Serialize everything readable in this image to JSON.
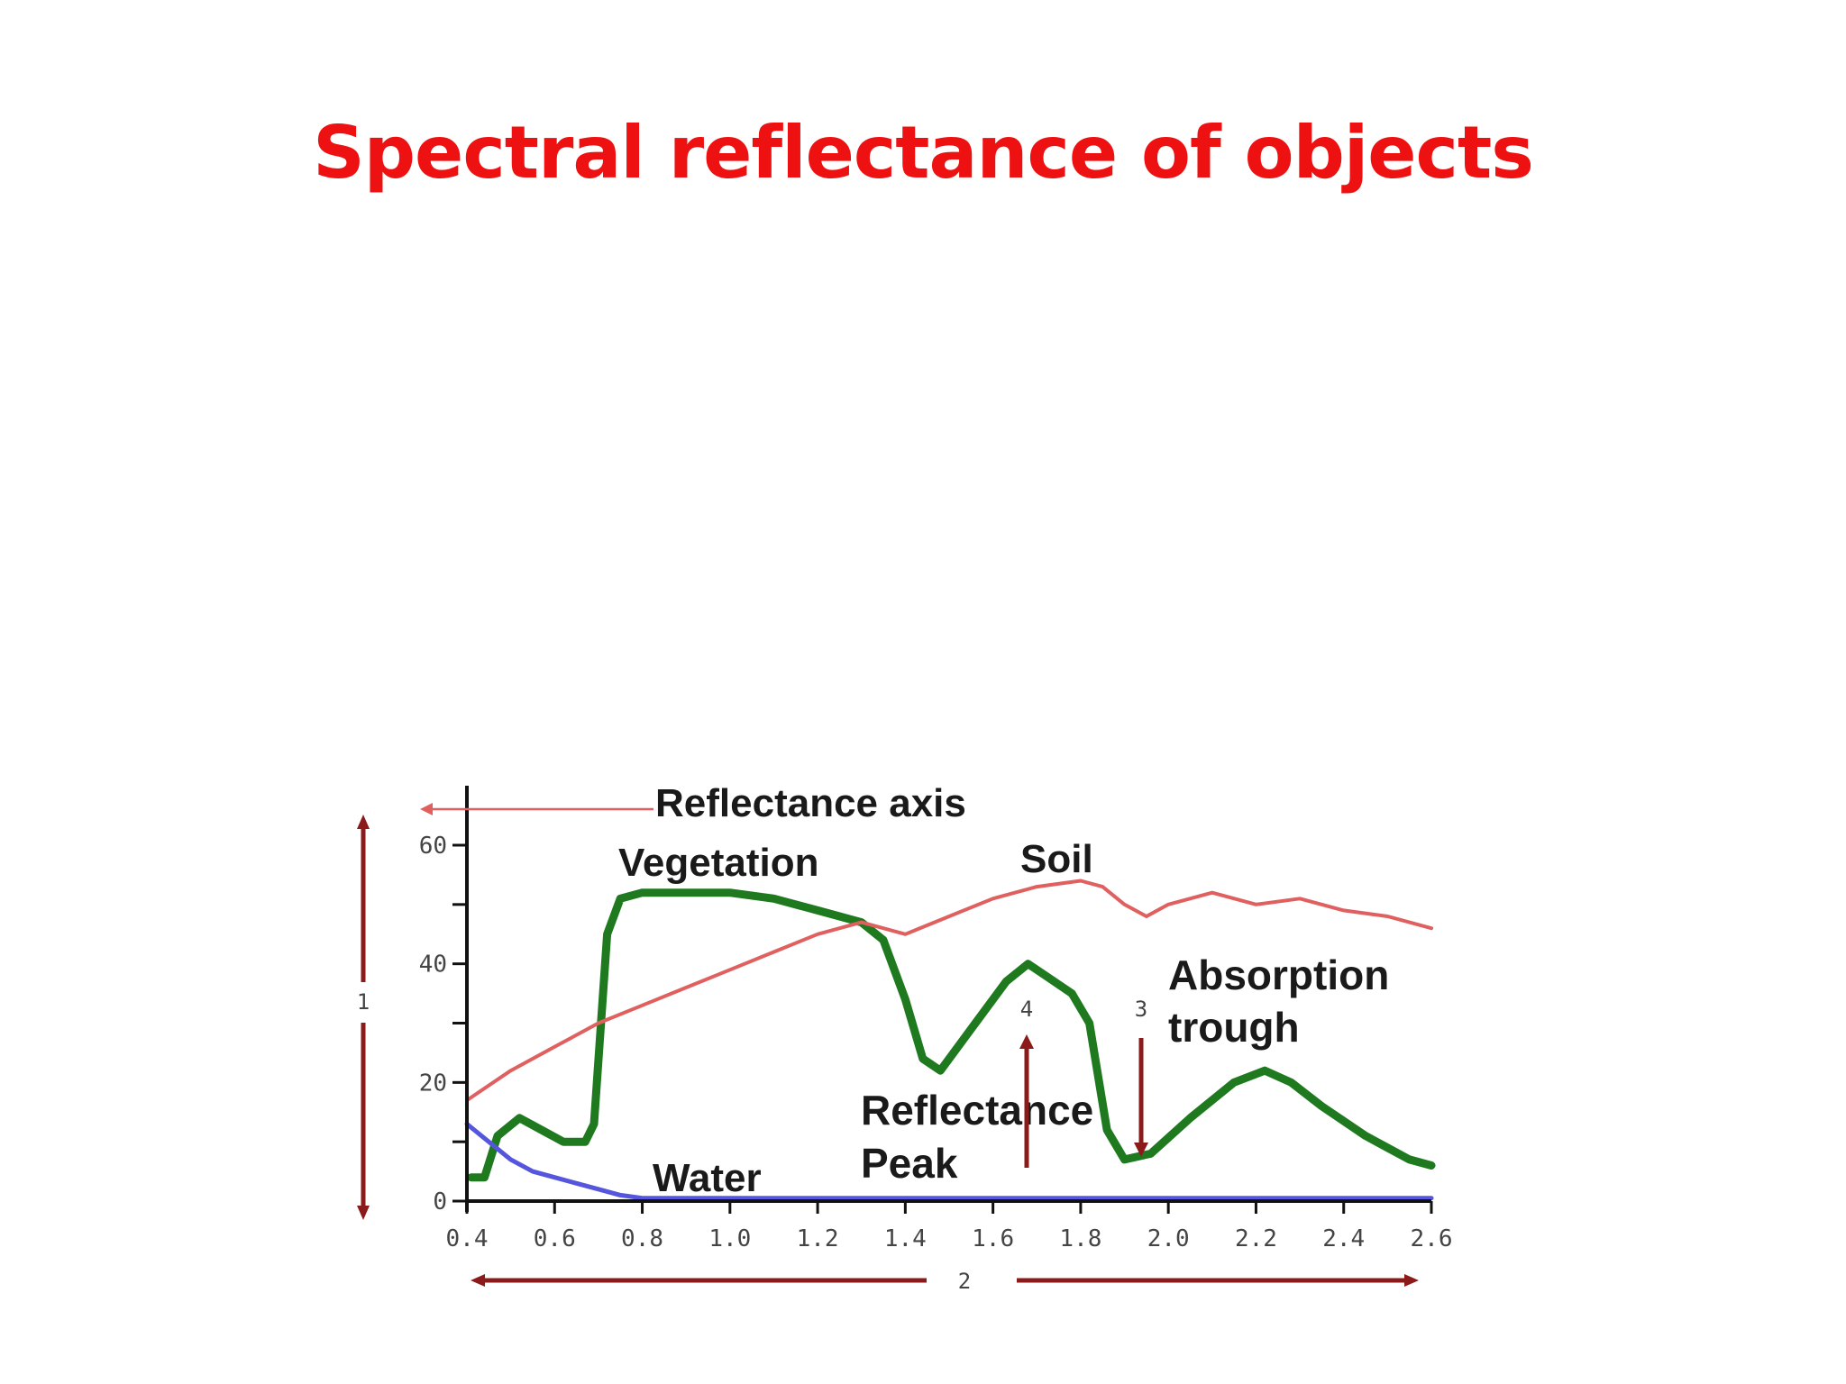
{
  "title": "Spectral reflectance of objects",
  "colors": {
    "title": "#ee1111",
    "vegetation": "#1f7a1f",
    "soil": "#e06060",
    "water": "#5555dd",
    "arrows": "#8b1a1a",
    "axis": "#111111"
  },
  "chart_data": {
    "type": "line",
    "xlim": [
      0.4,
      2.6
    ],
    "ylim": [
      0,
      60
    ],
    "x_ticks": [
      "0.4",
      "0.6",
      "0.8",
      "1.0",
      "1.2",
      "1.4",
      "1.6",
      "1.8",
      "2.0",
      "2.2",
      "2.4",
      "2.6"
    ],
    "x_tick_values": [
      0.4,
      0.6,
      0.8,
      1.0,
      1.2,
      1.4,
      1.6,
      1.8,
      2.0,
      2.2,
      2.4,
      2.6
    ],
    "y_ticks": [
      "0",
      "20",
      "40",
      "60"
    ],
    "y_tick_values": [
      0,
      20,
      40,
      60
    ],
    "y_minor_values": [
      10,
      30,
      50
    ],
    "series": [
      {
        "name": "Vegetation",
        "color": "#1f7a1f",
        "x": [
          0.41,
          0.44,
          0.47,
          0.52,
          0.57,
          0.62,
          0.67,
          0.69,
          0.72,
          0.75,
          0.8,
          0.9,
          1.0,
          1.1,
          1.2,
          1.3,
          1.35,
          1.4,
          1.44,
          1.48,
          1.55,
          1.63,
          1.68,
          1.72,
          1.78,
          1.82,
          1.86,
          1.9,
          1.96,
          2.05,
          2.15,
          2.22,
          2.28,
          2.35,
          2.45,
          2.55,
          2.6
        ],
        "y": [
          4,
          4,
          11,
          14,
          12,
          10,
          10,
          13,
          45,
          51,
          52,
          52,
          52,
          51,
          49,
          47,
          44,
          34,
          24,
          22,
          29,
          37,
          40,
          38,
          35,
          30,
          12,
          7,
          8,
          14,
          20,
          22,
          20,
          16,
          11,
          7,
          6
        ]
      },
      {
        "name": "Soil",
        "color": "#e06060",
        "x": [
          0.4,
          0.5,
          0.6,
          0.7,
          0.8,
          0.9,
          1.0,
          1.1,
          1.2,
          1.3,
          1.4,
          1.5,
          1.6,
          1.7,
          1.8,
          1.85,
          1.9,
          1.95,
          2.0,
          2.1,
          2.2,
          2.3,
          2.4,
          2.5,
          2.6
        ],
        "y": [
          17,
          22,
          26,
          30,
          33,
          36,
          39,
          42,
          45,
          47,
          45,
          48,
          51,
          53,
          54,
          53,
          50,
          48,
          50,
          52,
          50,
          51,
          49,
          48,
          46
        ]
      },
      {
        "name": "Water",
        "color": "#5555dd",
        "x": [
          0.4,
          0.45,
          0.5,
          0.55,
          0.6,
          0.65,
          0.7,
          0.75,
          0.8,
          0.9,
          1.0,
          1.5,
          2.0,
          2.6
        ],
        "y": [
          13,
          10,
          7,
          5,
          4,
          3,
          2,
          1,
          0.5,
          0.5,
          0.5,
          0.5,
          0.5,
          0.5
        ]
      }
    ],
    "annotations": {
      "reflectance_axis": "Reflectance axis",
      "vegetation": "Vegetation",
      "soil": "Soil",
      "water": "Water",
      "absorption_trough": [
        "Absorption",
        "trough"
      ],
      "reflectance_peak": [
        "Reflectance",
        "Peak"
      ],
      "marker_1": "1",
      "marker_2": "2",
      "marker_3": "3",
      "marker_4": "4"
    }
  }
}
